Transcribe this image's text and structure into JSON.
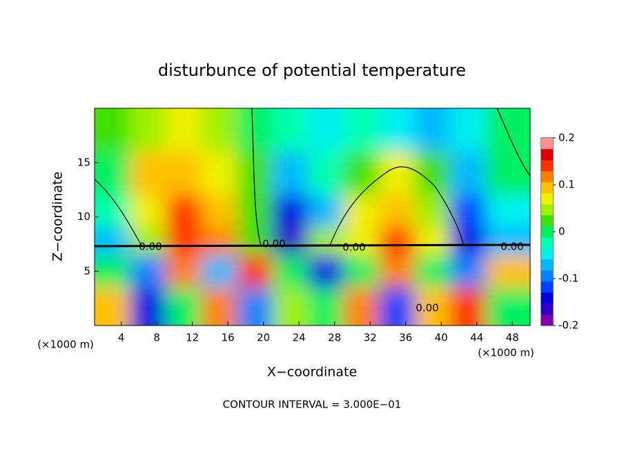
{
  "chart_data": {
    "type": "heatmap",
    "title": "disturbunce of potential temperature",
    "x_label": "X−coordinate",
    "y_label": "Z−coordinate",
    "x_unit_left": "(×1000 m)",
    "x_unit_right": "(×1000 m)",
    "footer": "CONTOUR INTERVAL = 3.000E−01",
    "xlim": [
      1,
      50
    ],
    "ylim": [
      0,
      20
    ],
    "xticks": [
      4,
      8,
      12,
      16,
      20,
      24,
      28,
      32,
      36,
      40,
      44,
      48
    ],
    "yticks": [
      5,
      10,
      15
    ],
    "x": [
      3,
      7,
      11,
      15,
      19,
      23,
      27,
      31,
      35,
      39,
      43,
      47
    ],
    "y": [
      18,
      14,
      10,
      8,
      5,
      2
    ],
    "z": [
      [
        0.02,
        0.05,
        0.06,
        0.04,
        0.01,
        -0.02,
        -0.04,
        -0.03,
        -0.05,
        -0.06,
        -0.04,
        0.0
      ],
      [
        0.01,
        0.09,
        0.1,
        0.07,
        0.02,
        -0.06,
        -0.03,
        0.03,
        0.06,
        0.02,
        -0.06,
        -0.01
      ],
      [
        -0.02,
        0.08,
        0.13,
        0.1,
        0.02,
        -0.14,
        -0.08,
        0.07,
        0.1,
        0.05,
        -0.12,
        -0.05
      ],
      [
        -0.06,
        0.05,
        0.15,
        0.12,
        0.03,
        -0.16,
        0.05,
        0.07,
        0.14,
        0.08,
        -0.15,
        -0.08
      ],
      [
        0.0,
        -0.1,
        0.12,
        -0.08,
        0.15,
        0.0,
        -0.15,
        0.0,
        0.12,
        0.0,
        -0.1,
        0.1
      ],
      [
        0.1,
        -0.15,
        0.0,
        0.12,
        -0.1,
        0.05,
        0.0,
        0.12,
        -0.12,
        0.1,
        0.15,
        0.0
      ]
    ],
    "colorbar_lim": [
      -0.2,
      0.2
    ],
    "colorbar_ticks": [
      -0.2,
      -0.1,
      0,
      0.1,
      0.2
    ],
    "colors": [
      "#8000b0",
      "#3000c8",
      "#0000e0",
      "#0040ff",
      "#0080ff",
      "#00b8ff",
      "#00f0f0",
      "#00ffb0",
      "#00f060",
      "#40e000",
      "#a0f000",
      "#f0f000",
      "#ffc000",
      "#ff8000",
      "#ff3000",
      "#e00000",
      "#ff9090"
    ],
    "contour_labels": [
      "0.00",
      "0.00",
      "0.00",
      "0.00",
      "0.00"
    ]
  }
}
